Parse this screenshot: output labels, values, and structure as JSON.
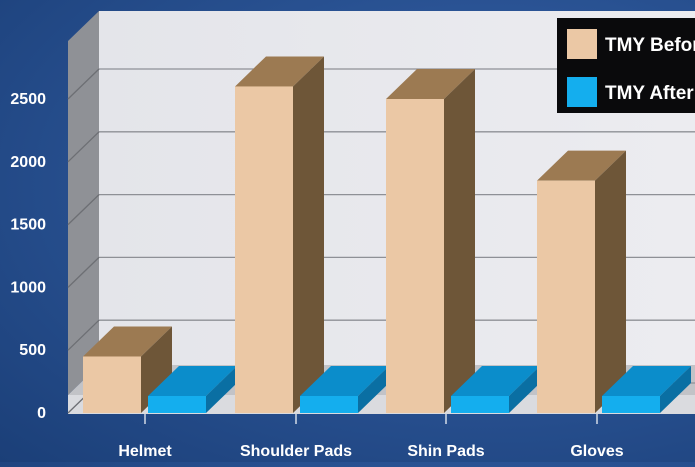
{
  "chart_data": {
    "type": "bar",
    "categories": [
      "Helmet",
      "Shoulder Pads",
      "Shin Pads",
      "Gloves"
    ],
    "series": [
      {
        "name": "TMY Before",
        "values": [
          450,
          2600,
          2500,
          1850
        ]
      },
      {
        "name": "TMY After",
        "values": [
          5,
          5,
          5,
          5
        ]
      }
    ],
    "yticks": [
      0,
      500,
      1000,
      1500,
      2000,
      2500
    ],
    "ylim": [
      0,
      2700
    ],
    "grid": true,
    "legend": "top-right",
    "colors": {
      "TMY Before": {
        "front": "#ebc8a5",
        "top": "#9c7a52",
        "side": "#6e5638"
      },
      "TMY After": {
        "front": "#14aeee",
        "top": "#0b8dcb",
        "side": "#0a6fa3"
      }
    }
  }
}
